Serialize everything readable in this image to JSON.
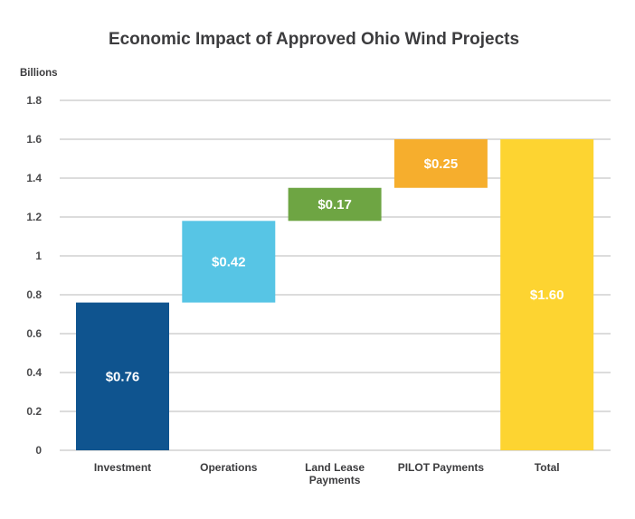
{
  "chart_data": {
    "type": "bar",
    "subtype": "waterfall",
    "title": "Economic Impact of Approved Ohio Wind Projects",
    "ylabel": "Billions",
    "xlabel": "",
    "ylim": [
      0,
      1.8
    ],
    "yticks": [
      0,
      0.2,
      0.4,
      0.6,
      0.8,
      1,
      1.2,
      1.4,
      1.6,
      1.8
    ],
    "ytick_labels": [
      "0",
      "0.2",
      "0.4",
      "0.6",
      "0.8",
      "1",
      "1.2",
      "1.4",
      "1.6",
      "1.8"
    ],
    "grid": true,
    "legend": "none",
    "categories": [
      [
        "Investment"
      ],
      [
        "Operations"
      ],
      [
        "Land Lease",
        "Payments"
      ],
      [
        "PILOT Payments"
      ],
      [
        "Total"
      ]
    ],
    "values": [
      0.76,
      0.42,
      0.17,
      0.25,
      1.6
    ],
    "bases": [
      0,
      0.76,
      1.18,
      1.35,
      0
    ],
    "data_labels": [
      "$0.76",
      "$0.42",
      "$0.17",
      "$0.25",
      "$1.60"
    ],
    "colors": [
      "#0f548f",
      "#57c5e5",
      "#6ea543",
      "#f6ae2d",
      "#fdd431"
    ]
  }
}
